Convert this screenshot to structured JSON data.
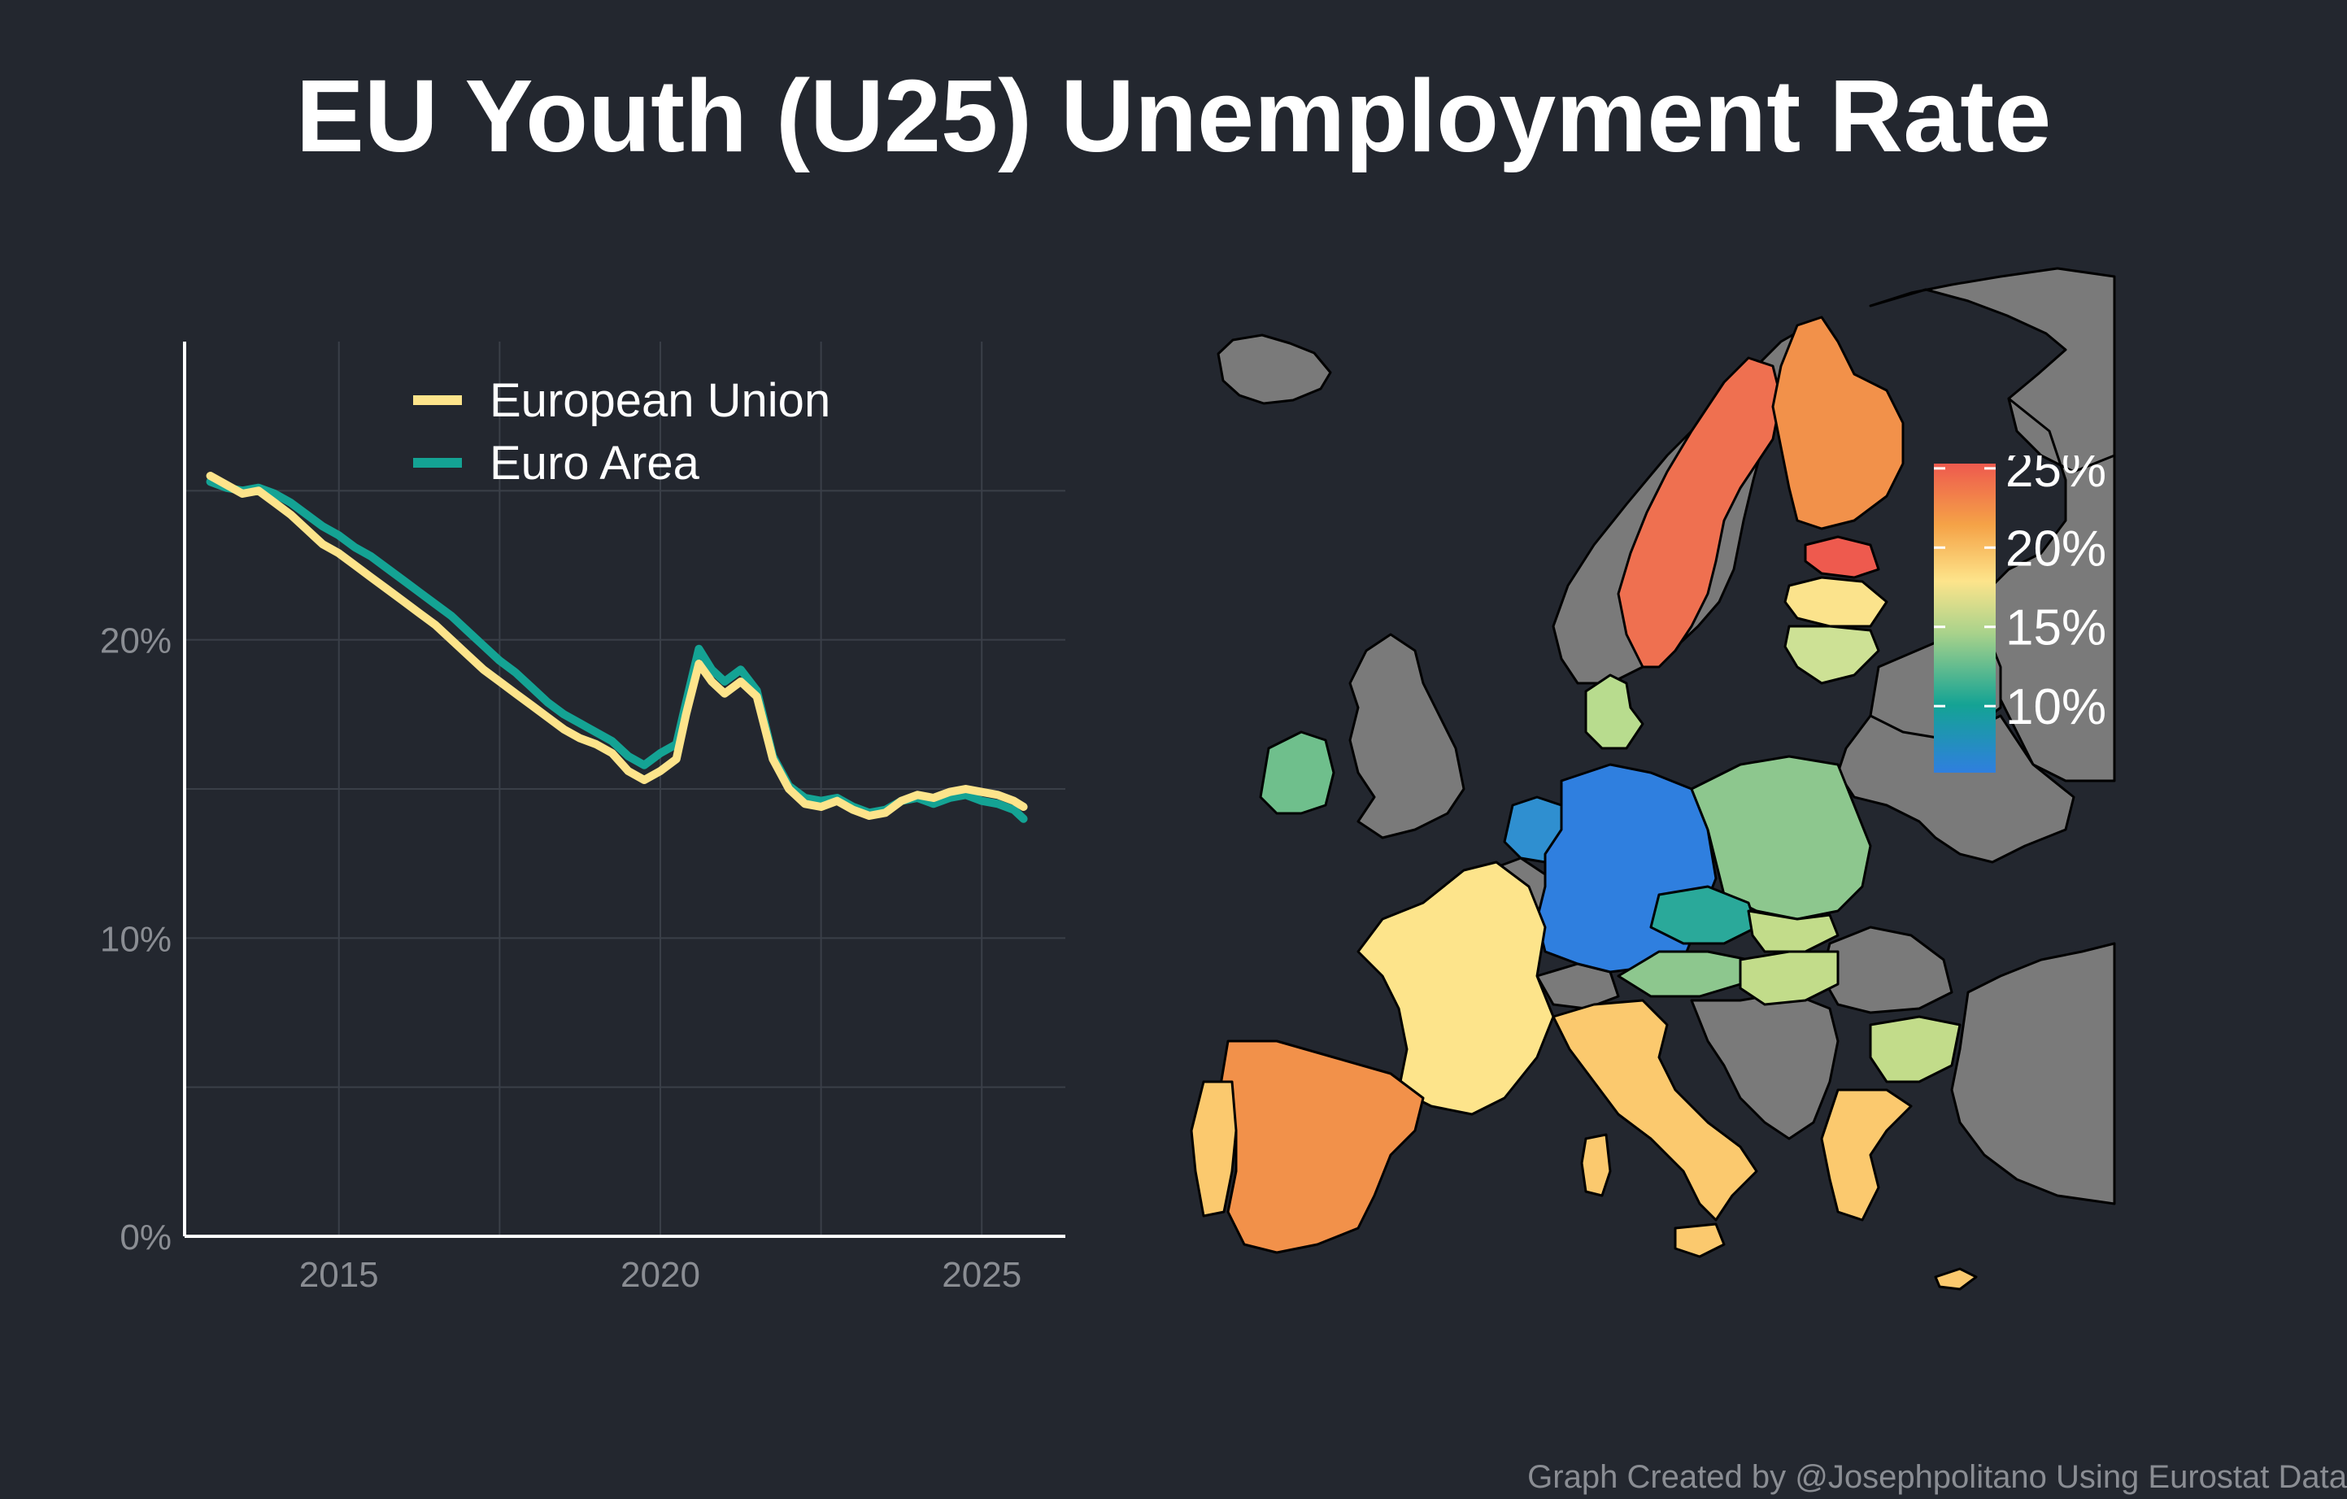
{
  "title": "EU Youth (U25) Unemployment Rate",
  "footer": "Graph Created by @Josephpolitano Using Eurostat Data",
  "chart_data": [
    {
      "type": "line",
      "title": "",
      "xlabel": "",
      "ylabel": "",
      "x_ticks": [
        "2015",
        "2020",
        "2025"
      ],
      "y_ticks": [
        "0%",
        "10%",
        "20%"
      ],
      "xlim": [
        2012.6,
        2026.3
      ],
      "ylim": [
        0,
        30
      ],
      "grid": true,
      "legend_position": "top",
      "series": [
        {
          "name": "European Union",
          "color": "#fde48b",
          "points": [
            [
              2013.0,
              25.5
            ],
            [
              2013.25,
              25.2
            ],
            [
              2013.5,
              24.9
            ],
            [
              2013.75,
              25.0
            ],
            [
              2014.0,
              24.6
            ],
            [
              2014.25,
              24.2
            ],
            [
              2014.5,
              23.7
            ],
            [
              2014.75,
              23.2
            ],
            [
              2015.0,
              22.9
            ],
            [
              2015.25,
              22.5
            ],
            [
              2015.5,
              22.1
            ],
            [
              2015.75,
              21.7
            ],
            [
              2016.0,
              21.3
            ],
            [
              2016.25,
              20.9
            ],
            [
              2016.5,
              20.5
            ],
            [
              2016.75,
              20.0
            ],
            [
              2017.0,
              19.5
            ],
            [
              2017.25,
              19.0
            ],
            [
              2017.5,
              18.6
            ],
            [
              2017.75,
              18.2
            ],
            [
              2018.0,
              17.8
            ],
            [
              2018.25,
              17.4
            ],
            [
              2018.5,
              17.0
            ],
            [
              2018.75,
              16.7
            ],
            [
              2019.0,
              16.5
            ],
            [
              2019.25,
              16.2
            ],
            [
              2019.5,
              15.6
            ],
            [
              2019.75,
              15.3
            ],
            [
              2020.0,
              15.6
            ],
            [
              2020.25,
              16.0
            ],
            [
              2020.4,
              17.5
            ],
            [
              2020.6,
              19.2
            ],
            [
              2020.8,
              18.6
            ],
            [
              2021.0,
              18.2
            ],
            [
              2021.25,
              18.6
            ],
            [
              2021.5,
              18.1
            ],
            [
              2021.75,
              16.0
            ],
            [
              2022.0,
              15.0
            ],
            [
              2022.25,
              14.5
            ],
            [
              2022.5,
              14.4
            ],
            [
              2022.75,
              14.6
            ],
            [
              2023.0,
              14.3
            ],
            [
              2023.25,
              14.1
            ],
            [
              2023.5,
              14.2
            ],
            [
              2023.75,
              14.6
            ],
            [
              2024.0,
              14.8
            ],
            [
              2024.25,
              14.7
            ],
            [
              2024.5,
              14.9
            ],
            [
              2024.75,
              15.0
            ],
            [
              2025.0,
              14.9
            ],
            [
              2025.25,
              14.8
            ],
            [
              2025.5,
              14.6
            ],
            [
              2025.65,
              14.4
            ]
          ]
        },
        {
          "name": "Euro Area",
          "color": "#14a394",
          "points": [
            [
              2013.0,
              25.3
            ],
            [
              2013.25,
              25.1
            ],
            [
              2013.5,
              25.0
            ],
            [
              2013.75,
              25.1
            ],
            [
              2014.0,
              24.9
            ],
            [
              2014.25,
              24.6
            ],
            [
              2014.5,
              24.2
            ],
            [
              2014.75,
              23.8
            ],
            [
              2015.0,
              23.5
            ],
            [
              2015.25,
              23.1
            ],
            [
              2015.5,
              22.8
            ],
            [
              2015.75,
              22.4
            ],
            [
              2016.0,
              22.0
            ],
            [
              2016.25,
              21.6
            ],
            [
              2016.5,
              21.2
            ],
            [
              2016.75,
              20.8
            ],
            [
              2017.0,
              20.3
            ],
            [
              2017.25,
              19.8
            ],
            [
              2017.5,
              19.3
            ],
            [
              2017.75,
              18.9
            ],
            [
              2018.0,
              18.4
            ],
            [
              2018.25,
              17.9
            ],
            [
              2018.5,
              17.5
            ],
            [
              2018.75,
              17.2
            ],
            [
              2019.0,
              16.9
            ],
            [
              2019.25,
              16.6
            ],
            [
              2019.5,
              16.1
            ],
            [
              2019.75,
              15.8
            ],
            [
              2020.0,
              16.2
            ],
            [
              2020.25,
              16.5
            ],
            [
              2020.4,
              17.9
            ],
            [
              2020.6,
              19.7
            ],
            [
              2020.8,
              19.0
            ],
            [
              2021.0,
              18.6
            ],
            [
              2021.25,
              19.0
            ],
            [
              2021.5,
              18.3
            ],
            [
              2021.75,
              16.1
            ],
            [
              2022.0,
              15.1
            ],
            [
              2022.25,
              14.7
            ],
            [
              2022.5,
              14.6
            ],
            [
              2022.75,
              14.7
            ],
            [
              2023.0,
              14.4
            ],
            [
              2023.25,
              14.2
            ],
            [
              2023.5,
              14.3
            ],
            [
              2023.75,
              14.6
            ],
            [
              2024.0,
              14.7
            ],
            [
              2024.25,
              14.5
            ],
            [
              2024.5,
              14.7
            ],
            [
              2024.75,
              14.8
            ],
            [
              2025.0,
              14.6
            ],
            [
              2025.25,
              14.5
            ],
            [
              2025.5,
              14.3
            ],
            [
              2025.65,
              14.0
            ]
          ]
        }
      ]
    },
    {
      "type": "choropleth",
      "title": "",
      "color_scale_ticks": [
        "10%",
        "15%",
        "20%",
        "25%"
      ],
      "color_scale_range": [
        5.8,
        25.3
      ],
      "color_scale": [
        "#2f7fdf",
        "#14a394",
        "#a8d28b",
        "#fde48b",
        "#f5a347",
        "#ee5a4e"
      ],
      "regions": [
        {
          "country": "Germany",
          "value": 6.5
        },
        {
          "country": "Netherlands",
          "value": 8.8
        },
        {
          "country": "Czechia",
          "value": 11.0
        },
        {
          "country": "Ireland",
          "value": 12.0
        },
        {
          "country": "Denmark",
          "value": 15.2
        },
        {
          "country": "Poland",
          "value": 13.5
        },
        {
          "country": "Austria",
          "value": 12.5
        },
        {
          "country": "Slovakia",
          "value": 16.0
        },
        {
          "country": "Hungary",
          "value": 15.5
        },
        {
          "country": "Lithuania",
          "value": 16.5
        },
        {
          "country": "Latvia",
          "value": 18.0
        },
        {
          "country": "Bulgaria",
          "value": 16.5
        },
        {
          "country": "France",
          "value": 19.0
        },
        {
          "country": "Italy",
          "value": 20.5
        },
        {
          "country": "Portugal",
          "value": 20.0
        },
        {
          "country": "Greece",
          "value": 19.5
        },
        {
          "country": "Cyprus",
          "value": 19.5
        },
        {
          "country": "Spain",
          "value": 24.0
        },
        {
          "country": "Finland",
          "value": 23.0
        },
        {
          "country": "Sweden",
          "value": 24.5
        },
        {
          "country": "Estonia",
          "value": 25.3
        }
      ],
      "no_data_color": "#7a7a7a"
    }
  ]
}
